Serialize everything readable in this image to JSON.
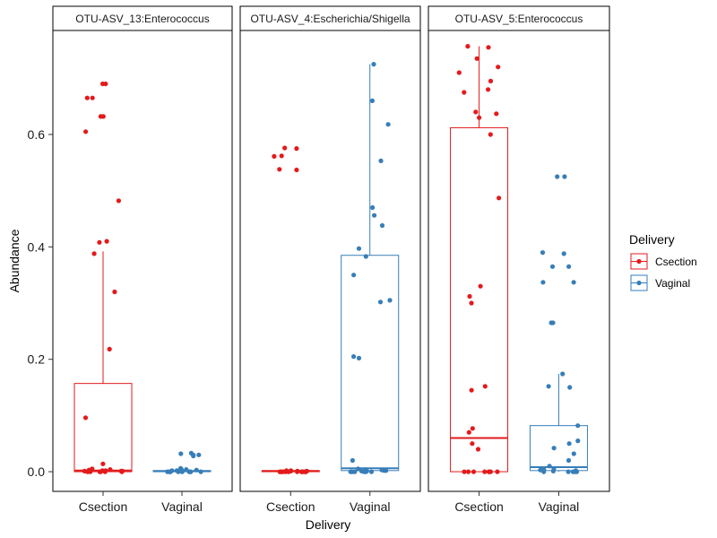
{
  "chart_data": {
    "type": "boxplot",
    "xlabel": "Delivery",
    "ylabel": "Abundance",
    "ylim": [
      -0.035,
      0.785
    ],
    "yticks": [
      0.0,
      0.2,
      0.4,
      0.6
    ],
    "ytick_labels": [
      "0.0",
      "0.2",
      "0.4",
      "0.6"
    ],
    "categories": [
      "Csection",
      "Vaginal"
    ],
    "colors": {
      "Csection": "#e31a1c",
      "Vaginal": "#377eb8"
    },
    "legend": {
      "title": "Delivery",
      "position": "right",
      "entries": [
        "Csection",
        "Vaginal"
      ]
    },
    "panels": [
      {
        "title": "OTU-ASV_13:Enterococcus",
        "boxes": [
          {
            "group": "Csection",
            "min": 0.0,
            "q1": 0.0,
            "median": 0.002,
            "q3": 0.157,
            "max": 0.392,
            "points": [
              0.69,
              0.69,
              0.665,
              0.665,
              0.632,
              0.632,
              0.605,
              0.482,
              0.41,
              0.408,
              0.388,
              0.32,
              0.218,
              0.096,
              0.014,
              0.005,
              0.004,
              0.003,
              0.002,
              0.002,
              0.002,
              0.001,
              0.001,
              0.001,
              0.0,
              0.0,
              0.0,
              0.0,
              0.0,
              0.0
            ]
          },
          {
            "group": "Vaginal",
            "min": 0.0,
            "q1": 0.0,
            "median": 0.001,
            "q3": 0.002,
            "max": 0.005,
            "points": [
              0.033,
              0.032,
              0.03,
              0.03,
              0.028,
              0.006,
              0.005,
              0.004,
              0.003,
              0.003,
              0.002,
              0.002,
              0.001,
              0.001,
              0.0,
              0.0,
              0.0,
              0.0,
              0.0,
              0.0,
              0.0,
              0.0,
              0.0,
              0.0
            ]
          }
        ]
      },
      {
        "title": "OTU-ASV_4:Escherichia/Shigella",
        "boxes": [
          {
            "group": "Csection",
            "min": 0.0,
            "q1": 0.0,
            "median": 0.001,
            "q3": 0.002,
            "max": 0.003,
            "points": [
              0.576,
              0.575,
              0.562,
              0.561,
              0.538,
              0.537,
              0.002,
              0.002,
              0.001,
              0.001,
              0.001,
              0.0,
              0.0,
              0.0,
              0.0,
              0.0,
              0.0,
              0.0,
              0.0,
              0.0,
              0.0,
              0.0,
              0.0,
              0.0
            ]
          },
          {
            "group": "Vaginal",
            "min": 0.0,
            "q1": 0.002,
            "median": 0.006,
            "q3": 0.385,
            "max": 0.725,
            "points": [
              0.725,
              0.66,
              0.618,
              0.553,
              0.47,
              0.456,
              0.438,
              0.397,
              0.383,
              0.35,
              0.305,
              0.302,
              0.205,
              0.202,
              0.02,
              0.005,
              0.004,
              0.003,
              0.002,
              0.002,
              0.001,
              0.001,
              0.0,
              0.0,
              0.0,
              0.0,
              0.0,
              0.0
            ]
          }
        ]
      },
      {
        "title": "OTU-ASV_5:Enterococcus",
        "boxes": [
          {
            "group": "Csection",
            "min": 0.0,
            "q1": 0.0,
            "median": 0.06,
            "q3": 0.612,
            "max": 0.757,
            "points": [
              0.757,
              0.755,
              0.735,
              0.72,
              0.71,
              0.695,
              0.68,
              0.675,
              0.64,
              0.637,
              0.63,
              0.6,
              0.487,
              0.33,
              0.312,
              0.3,
              0.152,
              0.145,
              0.077,
              0.07,
              0.05,
              0.04,
              0.0,
              0.0,
              0.0,
              0.0,
              0.0,
              0.0,
              0.0,
              0.0
            ]
          },
          {
            "group": "Vaginal",
            "min": 0.0,
            "q1": 0.002,
            "median": 0.008,
            "q3": 0.082,
            "max": 0.174,
            "points": [
              0.525,
              0.525,
              0.39,
              0.388,
              0.365,
              0.365,
              0.337,
              0.337,
              0.265,
              0.265,
              0.174,
              0.152,
              0.15,
              0.082,
              0.055,
              0.05,
              0.042,
              0.032,
              0.02,
              0.01,
              0.005,
              0.004,
              0.003,
              0.002,
              0.001,
              0.0,
              0.0,
              0.0,
              0.0,
              0.0
            ]
          }
        ]
      }
    ]
  }
}
